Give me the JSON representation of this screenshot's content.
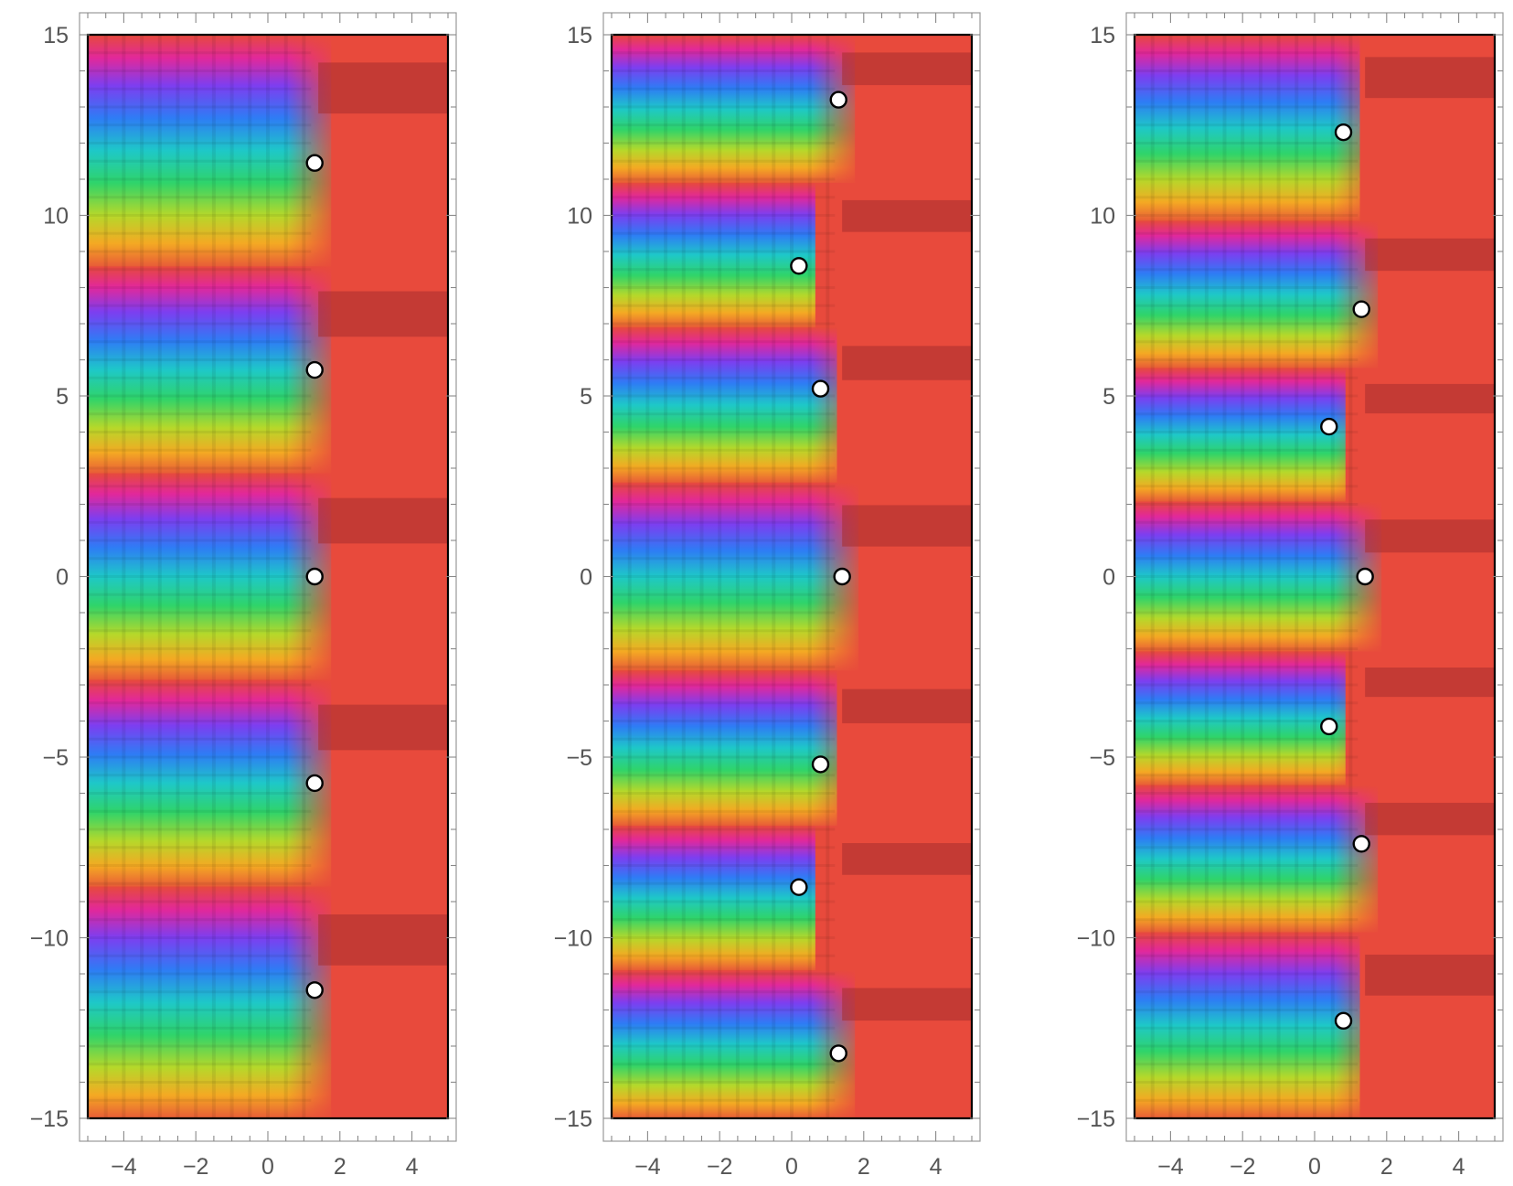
{
  "chart_data": [
    {
      "type": "heatmap",
      "title": "",
      "xlabel": "",
      "ylabel": "",
      "xlim": [
        -5,
        5
      ],
      "ylim": [
        -15,
        15
      ],
      "x_ticks": [
        "−4",
        "−2",
        "0",
        "2",
        "4"
      ],
      "y_ticks": [
        "15",
        "10",
        "5",
        "0",
        "−5",
        "−10",
        "−15"
      ],
      "colormap": "phase (argument) hue wheel with magnitude contour shading",
      "marker_color": "#ffffff",
      "markers": [
        {
          "x": 1.3,
          "y": 11.45
        },
        {
          "x": 1.3,
          "y": 5.72
        },
        {
          "x": 1.3,
          "y": 0.0
        },
        {
          "x": 1.3,
          "y": -5.72
        },
        {
          "x": 1.3,
          "y": -11.45
        }
      ]
    },
    {
      "type": "heatmap",
      "title": "",
      "xlabel": "",
      "ylabel": "",
      "xlim": [
        -5,
        5
      ],
      "ylim": [
        -15,
        15
      ],
      "x_ticks": [
        "−4",
        "−2",
        "0",
        "2",
        "4"
      ],
      "y_ticks": [
        "15",
        "10",
        "5",
        "0",
        "−5",
        "−10",
        "−15"
      ],
      "colormap": "phase (argument) hue wheel with magnitude contour shading",
      "marker_color": "#ffffff",
      "markers": [
        {
          "x": 1.3,
          "y": 13.2
        },
        {
          "x": 0.2,
          "y": 8.6
        },
        {
          "x": 0.8,
          "y": 5.2
        },
        {
          "x": 1.4,
          "y": 0.0
        },
        {
          "x": 0.8,
          "y": -5.2
        },
        {
          "x": 0.2,
          "y": -8.6
        },
        {
          "x": 1.3,
          "y": -13.2
        }
      ]
    },
    {
      "type": "heatmap",
      "title": "",
      "xlabel": "",
      "ylabel": "",
      "xlim": [
        -5,
        5
      ],
      "ylim": [
        -15,
        15
      ],
      "x_ticks": [
        "−4",
        "−2",
        "0",
        "2",
        "4"
      ],
      "y_ticks": [
        "15",
        "10",
        "5",
        "0",
        "−5",
        "−10",
        "−15"
      ],
      "colormap": "phase (argument) hue wheel with magnitude contour shading",
      "marker_color": "#ffffff",
      "markers": [
        {
          "x": 0.8,
          "y": 12.3
        },
        {
          "x": 1.3,
          "y": 7.4
        },
        {
          "x": 0.4,
          "y": 4.15
        },
        {
          "x": 1.4,
          "y": 0.0
        },
        {
          "x": 0.4,
          "y": -4.15
        },
        {
          "x": 1.3,
          "y": -7.4
        },
        {
          "x": 0.8,
          "y": -12.3
        }
      ]
    }
  ]
}
